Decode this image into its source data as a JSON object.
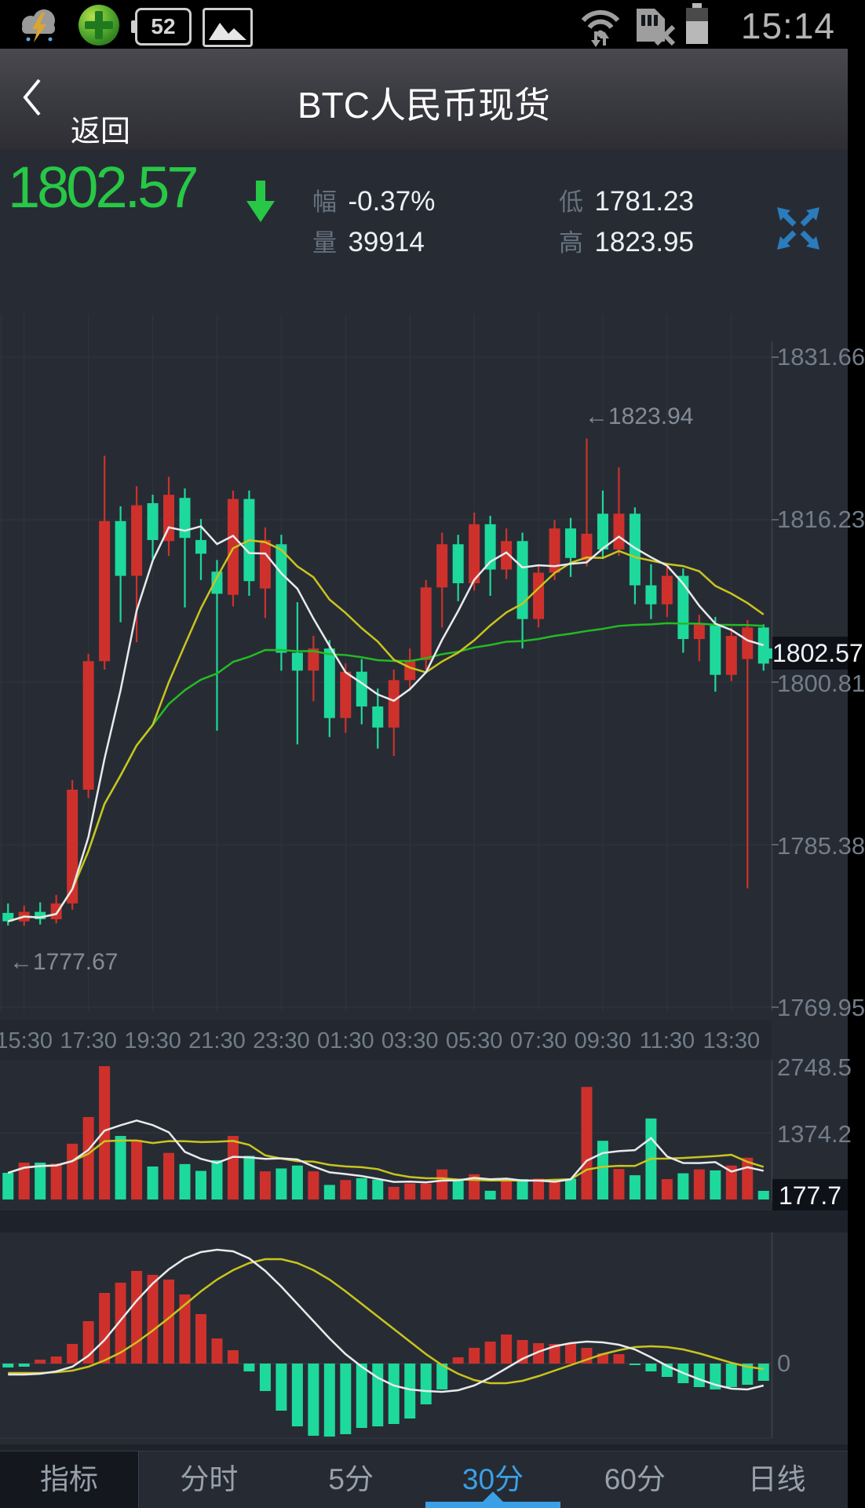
{
  "status_bar": {
    "time": "15:14",
    "battery_percent": "52",
    "icons_left": [
      "weather-storm-icon",
      "360-security-icon",
      "battery-level-icon",
      "gallery-icon"
    ],
    "icons_right": [
      "wifi-icon",
      "no-sim-icon",
      "battery-icon"
    ]
  },
  "nav_bar": {
    "back_label": "返回",
    "title": "BTC人民币现货"
  },
  "ticker": {
    "price": "1802.57",
    "direction": "down",
    "change_label": "幅",
    "change_value": "-0.37%",
    "volume_label": "量",
    "volume_value": "39914",
    "low_label": "低",
    "low_value": "1781.23",
    "high_label": "高",
    "high_value": "1823.95"
  },
  "colors": {
    "up_red": "#ce312c",
    "down_green": "#1ed99c",
    "price_green": "#27c846",
    "accent_blue": "#3aa0e8",
    "expand_blue": "#2b7cbc",
    "ma_white": "#e8eaec",
    "ma_yellow": "#c9c41f",
    "ma_green": "#23bb23",
    "bg": "#272c34",
    "label_gray": "#727d8a"
  },
  "tabs": [
    {
      "label": "指标",
      "active": false
    },
    {
      "label": "分时",
      "active": false
    },
    {
      "label": "5分",
      "active": false
    },
    {
      "label": "30分",
      "active": true
    },
    {
      "label": "60分",
      "active": false
    },
    {
      "label": "日线",
      "active": false
    }
  ],
  "chart_data": [
    {
      "type": "candlestick",
      "interval": "30分",
      "y_axis_labels": [
        "1831.66",
        "1816.23",
        "1800.81",
        "1785.38",
        "1769.95"
      ],
      "y_axis_values": [
        1831.66,
        1816.23,
        1800.81,
        1785.38,
        1769.95
      ],
      "time_labels": [
        "15:30",
        "17:30",
        "19:30",
        "21:30",
        "23:30",
        "01:30",
        "03:30",
        "05:30",
        "07:30",
        "09:30",
        "11:30",
        "13:30"
      ],
      "current_price": "1802.57",
      "high_annotation": "←1823.94",
      "high_annotation_value": 1823.94,
      "low_annotation": "←1777.67",
      "low_annotation_value": 1777.67,
      "price_range": [
        1769.95,
        1831.66
      ],
      "ma_periods": {
        "white": 5,
        "yellow": 10,
        "green": 48
      },
      "candles_ohlc": [
        [
          1778.9,
          1779.8,
          1777.7,
          1778.1
        ],
        [
          1778.1,
          1779.6,
          1777.67,
          1779.0
        ],
        [
          1779.0,
          1779.9,
          1777.8,
          1778.3
        ],
        [
          1778.3,
          1780.6,
          1777.9,
          1779.8
        ],
        [
          1779.8,
          1791.5,
          1779.2,
          1790.6
        ],
        [
          1790.6,
          1803.5,
          1789.8,
          1802.8
        ],
        [
          1802.8,
          1822.3,
          1802.0,
          1816.1
        ],
        [
          1816.1,
          1817.5,
          1806.5,
          1810.9
        ],
        [
          1810.9,
          1819.4,
          1804.6,
          1817.6
        ],
        [
          1817.8,
          1818.6,
          1812.5,
          1814.3
        ],
        [
          1814.2,
          1820.3,
          1812.8,
          1818.6
        ],
        [
          1818.3,
          1819.2,
          1807.9,
          1814.5
        ],
        [
          1814.3,
          1816.3,
          1810.5,
          1813.0
        ],
        [
          1811.3,
          1812.4,
          1796.2,
          1809.2
        ],
        [
          1809.1,
          1819.0,
          1808.0,
          1818.2
        ],
        [
          1818.2,
          1819.0,
          1809.0,
          1810.4
        ],
        [
          1809.7,
          1815.5,
          1806.9,
          1814.3
        ],
        [
          1813.9,
          1814.8,
          1801.9,
          1803.6
        ],
        [
          1803.6,
          1808.4,
          1794.9,
          1801.9
        ],
        [
          1801.9,
          1805.2,
          1799.0,
          1804.0
        ],
        [
          1804.0,
          1804.8,
          1795.6,
          1797.4
        ],
        [
          1797.4,
          1802.6,
          1796.0,
          1801.8
        ],
        [
          1801.8,
          1803.0,
          1796.8,
          1798.5
        ],
        [
          1798.5,
          1800.2,
          1794.5,
          1796.5
        ],
        [
          1796.5,
          1802.0,
          1793.8,
          1801.0
        ],
        [
          1801.0,
          1804.0,
          1800.0,
          1802.9
        ],
        [
          1802.9,
          1810.5,
          1802.0,
          1809.8
        ],
        [
          1809.8,
          1815.0,
          1806.0,
          1813.9
        ],
        [
          1813.9,
          1814.8,
          1808.5,
          1810.2
        ],
        [
          1810.2,
          1816.9,
          1809.5,
          1815.8
        ],
        [
          1815.8,
          1816.6,
          1809.0,
          1811.5
        ],
        [
          1811.5,
          1815.4,
          1810.6,
          1814.2
        ],
        [
          1814.2,
          1815.0,
          1804.0,
          1806.8
        ],
        [
          1806.8,
          1812.0,
          1806.0,
          1811.2
        ],
        [
          1811.2,
          1816.2,
          1810.5,
          1815.4
        ],
        [
          1815.4,
          1816.4,
          1810.8,
          1812.6
        ],
        [
          1812.4,
          1823.94,
          1811.8,
          1814.9
        ],
        [
          1816.8,
          1819.0,
          1812.5,
          1813.4
        ],
        [
          1813.4,
          1821.2,
          1812.8,
          1816.8
        ],
        [
          1816.8,
          1817.4,
          1808.2,
          1810.0
        ],
        [
          1810.0,
          1812.0,
          1806.8,
          1808.2
        ],
        [
          1808.2,
          1811.8,
          1807.0,
          1810.9
        ],
        [
          1810.9,
          1811.6,
          1803.6,
          1804.9
        ],
        [
          1804.9,
          1807.2,
          1802.8,
          1806.3
        ],
        [
          1806.3,
          1807.0,
          1799.9,
          1801.5
        ],
        [
          1801.5,
          1806.0,
          1800.9,
          1805.2
        ],
        [
          1803.0,
          1806.7,
          1781.23,
          1806.0
        ],
        [
          1806.0,
          1806.3,
          1801.9,
          1802.57
        ]
      ]
    },
    {
      "type": "bar",
      "name": "volume",
      "y_axis_labels": [
        "2748.5",
        "1374.2"
      ],
      "y_axis_values": [
        2748.5,
        1374.2
      ],
      "current_value": "177.7",
      "ma_periods": {
        "white": 5,
        "yellow": 10
      },
      "values": [
        550,
        760,
        760,
        740,
        1150,
        1700,
        2748,
        1310,
        1230,
        680,
        960,
        730,
        590,
        810,
        1310,
        900,
        580,
        640,
        700,
        580,
        300,
        400,
        440,
        410,
        260,
        330,
        330,
        620,
        430,
        520,
        180,
        400,
        420,
        430,
        400,
        430,
        2320,
        1210,
        630,
        500,
        1670,
        420,
        540,
        620,
        600,
        700,
        860,
        178
      ]
    },
    {
      "type": "macd",
      "zero_label": "0",
      "histogram": [
        -5,
        -4,
        5,
        9,
        25,
        54,
        90,
        103,
        118,
        113,
        107,
        88,
        63,
        32,
        17,
        -10,
        -35,
        -60,
        -80,
        -92,
        -93,
        -90,
        -82,
        -80,
        -77,
        -70,
        -52,
        -33,
        8,
        20,
        28,
        37,
        30,
        26,
        25,
        26,
        20,
        13,
        12,
        -2,
        -10,
        -17,
        -25,
        -30,
        -33,
        -30,
        -27,
        -22
      ],
      "dif_white": [
        -14,
        -14,
        -13,
        -10,
        -4,
        10,
        30,
        55,
        80,
        102,
        120,
        134,
        142,
        145,
        143,
        134,
        118,
        98,
        76,
        54,
        32,
        12,
        -4,
        -18,
        -28,
        -33,
        -35,
        -36,
        -34,
        -28,
        -18,
        -6,
        6,
        15,
        22,
        26,
        28,
        27,
        24,
        18,
        8,
        -3,
        -12,
        -20,
        -27,
        -32,
        -33,
        -28
      ],
      "dea_yellow": [
        -12,
        -12,
        -12,
        -11,
        -9,
        -4,
        4,
        14,
        27,
        42,
        58,
        75,
        92,
        107,
        119,
        128,
        133,
        133,
        128,
        119,
        107,
        92,
        76,
        60,
        44,
        28,
        12,
        -2,
        -13,
        -21,
        -25,
        -25,
        -22,
        -16,
        -9,
        -2,
        5,
        12,
        17,
        21,
        22,
        21,
        18,
        13,
        7,
        1,
        -4,
        -7
      ]
    }
  ]
}
